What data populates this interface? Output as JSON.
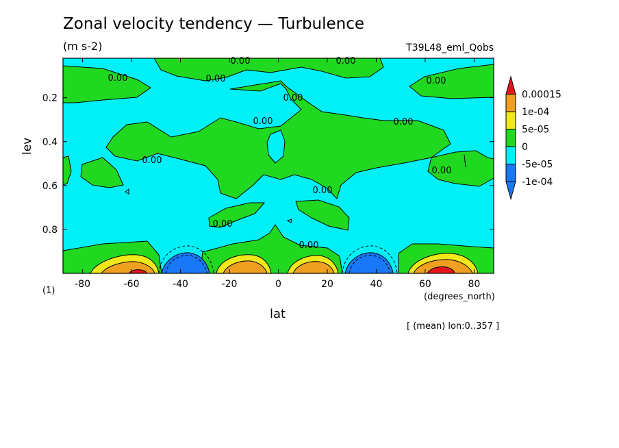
{
  "header": {
    "title": "Zonal velocity tendency — Turbulence",
    "units": "(m s-2)",
    "run_id": "T39L48_eml_Qobs"
  },
  "axes": {
    "x_label": "lat",
    "x_units": "(degrees_north)",
    "y_label": "lev",
    "y_units": "(1)",
    "note": "[ (mean) lon:0..357 ]"
  },
  "colors": {
    "red": "#e8141c",
    "orange": "#f0a020",
    "yellow": "#f0e818",
    "green": "#20d820",
    "cyan": "#00f0f8",
    "blue": "#1878f8"
  },
  "chart_data": {
    "type": "heatmap",
    "title": "Zonal velocity tendency — Turbulence",
    "subtitle": "(m s-2)",
    "xlabel": "lat",
    "ylabel": "lev",
    "xlim": [
      -88,
      88
    ],
    "ylim": [
      1.0,
      0.02
    ],
    "x_ticks": [
      -80,
      -60,
      -40,
      -20,
      0,
      20,
      40,
      60,
      80
    ],
    "y_ticks": [
      0.2,
      0.4,
      0.6,
      0.8
    ],
    "y_tick_labels": [
      "0.2",
      "0.4",
      "0.6",
      "0.8"
    ],
    "x_tick_labels": [
      "-80",
      "-60",
      "-40",
      "-20",
      "0",
      "20",
      "40",
      "60",
      "80"
    ],
    "contour_labels": [
      "0.00",
      "0.00",
      "0.00",
      "0.00",
      "0.00",
      "0.00",
      "0.00",
      "0.00",
      "0.00",
      "0.00",
      "0.00",
      "0.00",
      "0.00",
      "0.00"
    ],
    "colorbar": {
      "levels": [
        "0.00015",
        "1e-04",
        "5e-05",
        "0",
        "-5e-05",
        "-1e-04"
      ],
      "bins": [
        {
          "range": "> 0.00015",
          "color": "#e8141c"
        },
        {
          "range": "1e-04 to 0.00015",
          "color": "#f0a020"
        },
        {
          "range": "5e-05 to 1e-04",
          "color": "#f0e818"
        },
        {
          "range": "0 to 5e-05",
          "color": "#20d820"
        },
        {
          "range": "-5e-05 to 0",
          "color": "#00f0f8"
        },
        {
          "range": "-1e-04 to -5e-05",
          "color": "#1878f8"
        },
        {
          "range": "< -1e-04",
          "color": "#1878f8"
        }
      ]
    },
    "features": [
      {
        "lat": -60,
        "lev": 0.98,
        "sign": "positive",
        "peak": 0.00015
      },
      {
        "lat": -38,
        "lev": 0.97,
        "sign": "negative",
        "peak": -0.0001
      },
      {
        "lat": -15,
        "lev": 0.98,
        "sign": "positive",
        "peak": 0.0001
      },
      {
        "lat": 15,
        "lev": 0.98,
        "sign": "positive",
        "peak": 0.0001
      },
      {
        "lat": 38,
        "lev": 0.97,
        "sign": "negative",
        "peak": -0.0001
      },
      {
        "lat": 62,
        "lev": 0.98,
        "sign": "positive",
        "peak": 0.00015
      }
    ]
  }
}
